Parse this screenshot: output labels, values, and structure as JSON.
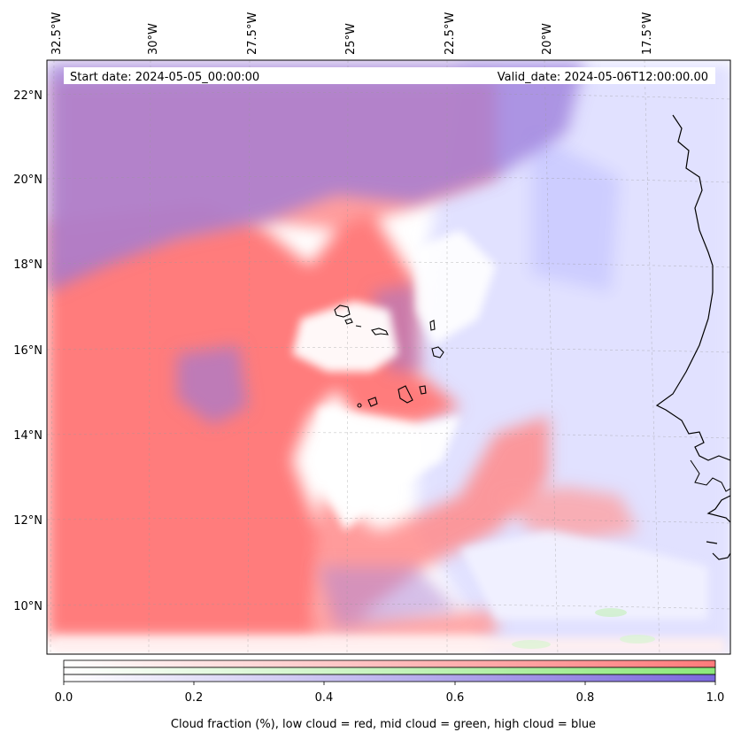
{
  "header": {
    "start_date": "Start date: 2024-05-05_00:00:00",
    "valid_date": "Valid_date: 2024-05-06T12:00:00.00"
  },
  "longitude_labels": [
    "32.5°W",
    "30°W",
    "27.5°W",
    "25°W",
    "22.5°W",
    "20°W",
    "17.5°W"
  ],
  "latitude_labels": [
    "22°N",
    "20°N",
    "18°N",
    "16°N",
    "14°N",
    "12°N",
    "10°N"
  ],
  "colorbar": {
    "ticks": [
      "0.0",
      "0.2",
      "0.4",
      "0.6",
      "0.8",
      "1.0"
    ],
    "label": "Cloud fraction (%), low cloud = red, mid cloud = green, high cloud = blue",
    "colors": {
      "low": "#ff7b7b",
      "mid": "#8ce87a",
      "high": "#7b68dd"
    }
  }
}
